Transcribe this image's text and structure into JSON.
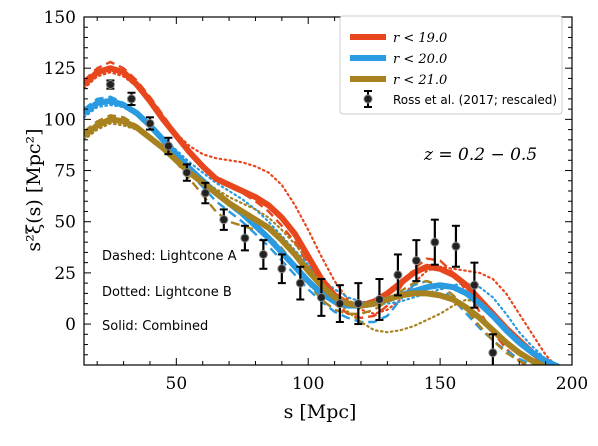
{
  "chart_data": {
    "type": "line",
    "xlabel": "s [Mpc]",
    "ylabel": "s²ξ(s) [Mpc²]",
    "xlim": [
      15,
      200
    ],
    "ylim": [
      -20,
      150
    ],
    "xticks": [
      50,
      100,
      150,
      200
    ],
    "yticks": [
      0,
      25,
      50,
      75,
      100,
      125,
      150
    ],
    "annotation": "z = 0.2 − 0.5",
    "notes": [
      "Dashed: Lightcone A",
      "Dotted: Lightcone B",
      "Solid: Combined"
    ],
    "legend_position": "top-right",
    "colors": {
      "r19": "#e8471e",
      "r20": "#2a9be0",
      "r21": "#a8821e",
      "data": "#000000"
    },
    "series": [
      {
        "name": "r < 19.0",
        "color": "#e8471e",
        "x": [
          15,
          20,
          25,
          30,
          35,
          40,
          45,
          50,
          55,
          60,
          65,
          70,
          75,
          80,
          85,
          90,
          95,
          100,
          105,
          110,
          115,
          120,
          125,
          130,
          135,
          140,
          145,
          150,
          155,
          160,
          165,
          170,
          175,
          180,
          185,
          190,
          195
        ],
        "combined": [
          117,
          123,
          125,
          123,
          117,
          109,
          100,
          92,
          84,
          77,
          71,
          68,
          65,
          62,
          58,
          52,
          44,
          33,
          22,
          14,
          10,
          9,
          11,
          15,
          20,
          25,
          28,
          27,
          24,
          19,
          12,
          5,
          -2,
          -8,
          -14,
          -19,
          -22
        ],
        "lightcone_a": [
          119,
          125,
          128,
          125,
          119,
          111,
          102,
          93,
          84,
          76,
          70,
          67,
          64,
          60,
          55,
          48,
          40,
          29,
          18,
          10,
          5,
          3,
          4,
          9,
          18,
          27,
          32,
          31,
          25,
          16,
          6,
          -4,
          -12,
          -18,
          -22,
          -25,
          -27
        ],
        "lightcone_b": [
          115,
          121,
          123,
          121,
          116,
          109,
          101,
          93,
          87,
          83,
          81,
          80,
          79,
          77,
          74,
          68,
          58,
          46,
          33,
          21,
          12,
          7,
          5,
          7,
          12,
          20,
          26,
          28,
          27,
          26,
          25,
          22,
          15,
          5,
          -5,
          -15,
          -22
        ]
      },
      {
        "name": "r < 20.0",
        "color": "#2a9be0",
        "x": [
          15,
          20,
          25,
          30,
          35,
          40,
          45,
          50,
          55,
          60,
          65,
          70,
          75,
          80,
          85,
          90,
          95,
          100,
          105,
          110,
          115,
          120,
          125,
          130,
          135,
          140,
          145,
          150,
          155,
          160,
          165,
          170,
          175,
          180,
          185,
          190,
          195
        ],
        "combined": [
          103,
          108,
          109,
          107,
          103,
          97,
          90,
          83,
          76,
          70,
          64,
          59,
          54,
          48,
          42,
          35,
          28,
          21,
          15,
          11,
          9,
          9,
          10,
          12,
          14,
          16,
          18,
          19,
          18,
          15,
          10,
          4,
          -3,
          -9,
          -14,
          -18,
          -21
        ],
        "lightcone_a": [
          105,
          110,
          111,
          108,
          103,
          97,
          90,
          82,
          74,
          67,
          60,
          55,
          50,
          44,
          38,
          31,
          24,
          17,
          11,
          6,
          3,
          1,
          1,
          4,
          12,
          19,
          21,
          18,
          12,
          5,
          -2,
          -8,
          -13,
          -17,
          -20,
          -22,
          -24
        ],
        "lightcone_b": [
          101,
          106,
          107,
          106,
          102,
          97,
          91,
          85,
          79,
          74,
          69,
          65,
          61,
          56,
          50,
          43,
          36,
          29,
          22,
          17,
          13,
          11,
          10,
          10,
          11,
          13,
          15,
          17,
          19,
          20,
          18,
          13,
          5,
          -4,
          -11,
          -17,
          -21
        ]
      },
      {
        "name": "r < 21.0",
        "color": "#a8821e",
        "x": [
          15,
          20,
          25,
          30,
          35,
          40,
          45,
          50,
          55,
          60,
          65,
          70,
          75,
          80,
          85,
          90,
          95,
          100,
          105,
          110,
          115,
          120,
          125,
          130,
          135,
          140,
          145,
          150,
          155,
          160,
          165,
          170,
          175,
          180,
          185,
          190,
          195
        ],
        "combined": [
          92,
          97,
          100,
          99,
          96,
          91,
          86,
          80,
          74,
          69,
          64,
          59,
          55,
          51,
          47,
          41,
          34,
          26,
          19,
          13,
          10,
          9,
          10,
          12,
          14,
          15,
          15,
          14,
          12,
          8,
          3,
          -3,
          -9,
          -14,
          -18,
          -21,
          -23
        ],
        "lightcone_a": [
          94,
          99,
          102,
          101,
          97,
          92,
          86,
          79,
          71,
          63,
          55,
          50,
          48,
          46,
          43,
          37,
          29,
          20,
          12,
          7,
          5,
          5,
          7,
          11,
          16,
          20,
          21,
          19,
          14,
          7,
          -1,
          -8,
          -14,
          -18,
          -21,
          -23,
          -24
        ],
        "lightcone_b": [
          90,
          95,
          98,
          97,
          95,
          90,
          85,
          80,
          75,
          70,
          66,
          62,
          59,
          56,
          52,
          46,
          39,
          31,
          22,
          13,
          6,
          1,
          -3,
          -4,
          -3,
          -1,
          2,
          5,
          9,
          12,
          10,
          5,
          -2,
          -9,
          -15,
          -20,
          -23
        ]
      }
    ],
    "data_points": {
      "name": "Ross et al. (2017; rescaled)",
      "x": [
        25,
        33,
        40,
        47,
        54,
        61,
        68,
        76,
        83,
        90,
        97,
        105,
        112,
        119,
        127,
        134,
        141,
        148,
        156,
        163,
        170
      ],
      "y": [
        117,
        110,
        98,
        87,
        74,
        64,
        51,
        42,
        34,
        27,
        20,
        13,
        10,
        10,
        12,
        24,
        31,
        40,
        38,
        19,
        -14
      ],
      "yerr": [
        2,
        3,
        3,
        4,
        4,
        5,
        5,
        6,
        7,
        7,
        8,
        9,
        9,
        10,
        10,
        10,
        10,
        11,
        10,
        11,
        9
      ]
    }
  }
}
